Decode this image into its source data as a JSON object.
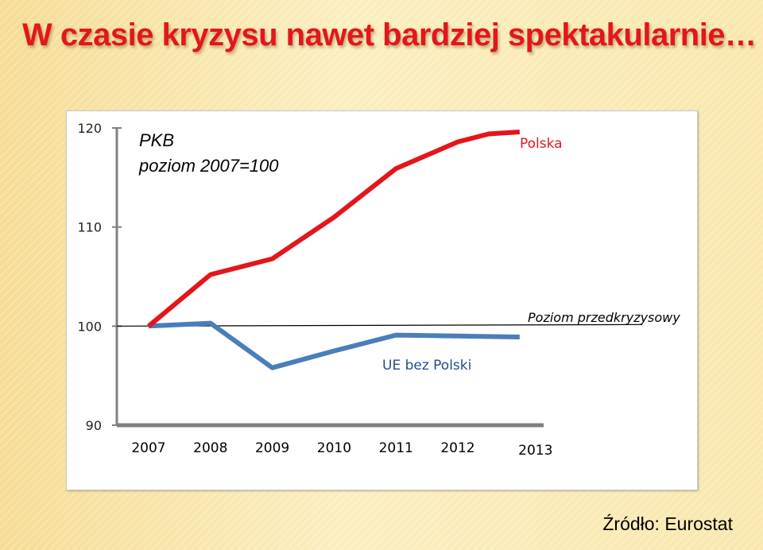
{
  "slide_title": "W czasie kryzysu nawet bardziej spektakularnie…",
  "source_note": "Źródło: Eurostat",
  "colors": {
    "polska": "#e4161b",
    "ue": "#4a7ebb",
    "title": "#e4161b",
    "axis": "#808080",
    "reference": "#000000"
  },
  "chart_data": {
    "type": "line",
    "title": "PKB",
    "subtitle": "poziom 2007=100",
    "x": [
      "2007",
      "2008",
      "2009",
      "2010",
      "2011",
      "2012",
      "2013"
    ],
    "ylim": [
      90,
      120
    ],
    "yticks": [
      "90",
      "100",
      "110",
      "120"
    ],
    "grid": false,
    "series": [
      {
        "name": "Polska",
        "color": "#e4161b",
        "x": [
          2007,
          2008,
          2009,
          2010,
          2011,
          2012,
          2012.5,
          2013
        ],
        "values": [
          100,
          105.2,
          106.8,
          111,
          115.9,
          118.6,
          119.4,
          119.6
        ]
      },
      {
        "name": "UE bez Polski",
        "color": "#4a7ebb",
        "x": [
          2007,
          2008,
          2009,
          2010,
          2011,
          2012,
          2013
        ],
        "values": [
          100,
          100.3,
          95.8,
          97.5,
          99.1,
          99.0,
          98.9
        ]
      }
    ],
    "reference_line": {
      "label": "Poziom przedkryzysowy",
      "value": 100
    }
  }
}
